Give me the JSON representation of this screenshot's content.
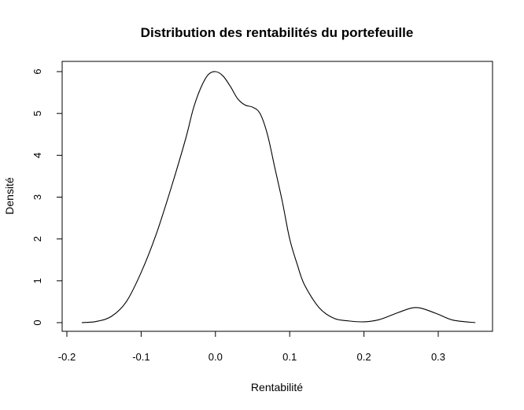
{
  "chart_data": {
    "type": "line",
    "title": "Distribution des rentabilités du portefeuille",
    "xlabel": "Rentabilité",
    "ylabel": "Densité",
    "xlim": [
      -0.2,
      0.35
    ],
    "ylim": [
      0,
      6.2
    ],
    "x_ticks": [
      "-0.2",
      "-0.1",
      "0.0",
      "0.1",
      "0.2",
      "0.3"
    ],
    "y_ticks": [
      "0",
      "1",
      "2",
      "3",
      "4",
      "5",
      "6"
    ],
    "grid": false,
    "legend": "none",
    "series": [
      {
        "x": [
          -0.18,
          -0.16,
          -0.14,
          -0.12,
          -0.1,
          -0.08,
          -0.06,
          -0.04,
          -0.03,
          -0.02,
          -0.01,
          0.0,
          0.01,
          0.02,
          0.03,
          0.04,
          0.05,
          0.06,
          0.07,
          0.08,
          0.09,
          0.1,
          0.11,
          0.12,
          0.14,
          0.16,
          0.18,
          0.2,
          0.22,
          0.24,
          0.26,
          0.27,
          0.28,
          0.3,
          0.32,
          0.35
        ],
        "y": [
          0.0,
          0.03,
          0.15,
          0.5,
          1.2,
          2.1,
          3.2,
          4.4,
          5.1,
          5.6,
          5.92,
          6.0,
          5.9,
          5.65,
          5.35,
          5.2,
          5.15,
          5.0,
          4.5,
          3.7,
          2.9,
          2.0,
          1.4,
          0.9,
          0.35,
          0.1,
          0.04,
          0.02,
          0.07,
          0.2,
          0.33,
          0.36,
          0.33,
          0.2,
          0.06,
          0.0
        ]
      }
    ]
  }
}
